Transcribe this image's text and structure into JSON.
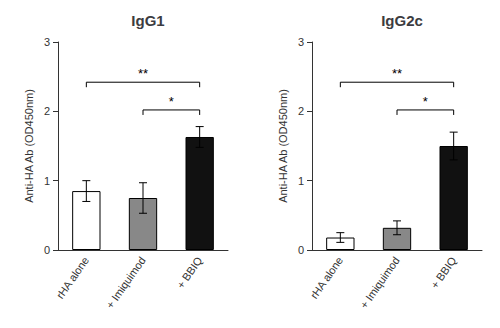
{
  "chart_data": [
    {
      "type": "bar",
      "title": "IgG1",
      "ylabel": "Anti-HA Ab (OD450nm)",
      "categories": [
        "rHA alone",
        "+ Imiquimod",
        "+ BBIQ"
      ],
      "values": [
        0.85,
        0.75,
        1.63
      ],
      "errors": [
        0.15,
        0.22,
        0.15
      ],
      "colors": [
        "#ffffff",
        "#888888",
        "#111111"
      ],
      "ylim": [
        0,
        3.0
      ],
      "yticks": [
        0,
        1,
        2,
        3
      ],
      "grid": false,
      "annotations": [
        {
          "x1": "rHA alone",
          "x2": "+ BBIQ",
          "y": 2.42,
          "label": "**"
        },
        {
          "x1": "+ Imiquimod",
          "x2": "+ BBIQ",
          "y": 2.02,
          "label": "*"
        }
      ]
    },
    {
      "type": "bar",
      "title": "IgG2c",
      "ylabel": "Anti-HA Ab (OD450nm)",
      "categories": [
        "rHA alone",
        "+ Imiquimod",
        "+ BBIQ"
      ],
      "values": [
        0.18,
        0.32,
        1.5
      ],
      "errors": [
        0.07,
        0.1,
        0.2
      ],
      "colors": [
        "#ffffff",
        "#888888",
        "#111111"
      ],
      "ylim": [
        0,
        3.0
      ],
      "yticks": [
        0,
        1,
        2,
        3
      ],
      "grid": false,
      "annotations": [
        {
          "x1": "rHA alone",
          "x2": "+ BBIQ",
          "y": 2.42,
          "label": "**"
        },
        {
          "x1": "+ Imiquimod",
          "x2": "+ BBIQ",
          "y": 2.02,
          "label": "*"
        }
      ]
    }
  ]
}
